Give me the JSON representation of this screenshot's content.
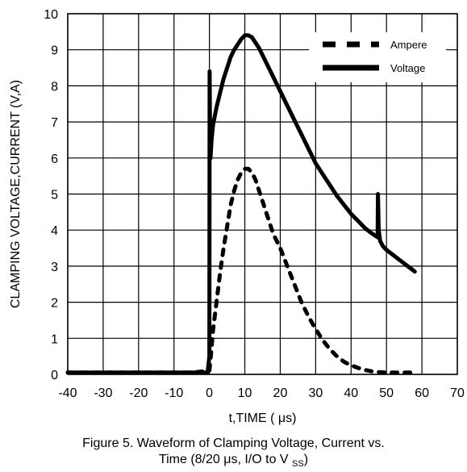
{
  "chart_data": {
    "type": "line",
    "title": "",
    "xlabel": "t,TIME ( μs)",
    "ylabel": "CLAMPING VOLTAGE,CURRENT (V,A)",
    "xlim": [
      -40,
      70
    ],
    "ylim": [
      0,
      10
    ],
    "xticks": [
      -40,
      -30,
      -20,
      -10,
      0,
      10,
      20,
      30,
      40,
      50,
      60,
      70
    ],
    "yticks": [
      0,
      1,
      2,
      3,
      4,
      5,
      6,
      7,
      8,
      9,
      10
    ],
    "grid": true,
    "legend_position": "top-right",
    "series": [
      {
        "name": "Ampere",
        "style": "dashed",
        "color": "#000000",
        "x": [
          -40,
          -5,
          0,
          0.3,
          1,
          2,
          3,
          4,
          5,
          6,
          7,
          8,
          9,
          10,
          11,
          12,
          13,
          14,
          15,
          16,
          17,
          18,
          20,
          22,
          24,
          26,
          28,
          30,
          32,
          34,
          36,
          38,
          40,
          42,
          44,
          46,
          48,
          50,
          52,
          54,
          56,
          58
        ],
        "y": [
          0.05,
          0.05,
          0.1,
          0.4,
          1.2,
          2.0,
          2.8,
          3.5,
          4.1,
          4.7,
          5.1,
          5.4,
          5.6,
          5.7,
          5.7,
          5.6,
          5.4,
          5.1,
          4.8,
          4.5,
          4.2,
          3.9,
          3.5,
          3.0,
          2.5,
          2.0,
          1.6,
          1.25,
          0.95,
          0.7,
          0.5,
          0.35,
          0.25,
          0.18,
          0.12,
          0.08,
          0.06,
          0.05,
          0.05,
          0.05,
          0.05,
          0.05
        ]
      },
      {
        "name": "Voltage",
        "style": "solid",
        "color": "#000000",
        "x": [
          -40,
          -5,
          -0.5,
          0,
          0.05,
          0.15,
          0.3,
          0.6,
          1,
          2,
          3,
          4,
          5,
          6,
          7,
          8,
          9,
          10,
          11,
          12,
          13,
          14,
          15,
          16,
          18,
          20,
          22,
          24,
          26,
          28,
          30,
          32,
          34,
          36,
          38,
          40,
          42,
          44,
          46,
          47.5,
          47.6,
          47.8,
          48.2,
          49,
          50,
          52,
          54,
          56,
          58
        ],
        "y": [
          0.05,
          0.05,
          0.05,
          0.5,
          8.4,
          7.0,
          6.0,
          6.5,
          6.9,
          7.4,
          7.8,
          8.2,
          8.5,
          8.8,
          9.0,
          9.15,
          9.3,
          9.4,
          9.4,
          9.35,
          9.2,
          9.05,
          8.85,
          8.65,
          8.25,
          7.85,
          7.45,
          7.05,
          6.65,
          6.25,
          5.85,
          5.55,
          5.25,
          4.95,
          4.7,
          4.45,
          4.25,
          4.05,
          3.9,
          3.8,
          5.0,
          4.0,
          3.7,
          3.55,
          3.45,
          3.3,
          3.15,
          3.0,
          2.85
        ]
      }
    ]
  },
  "caption": {
    "line1": "Figure 5. Waveform of Clamping Voltage, Current vs.",
    "line2_main": "Time (8/20 μs, I/O to V",
    "line2_sub": "SS",
    "line2_end": ")"
  }
}
